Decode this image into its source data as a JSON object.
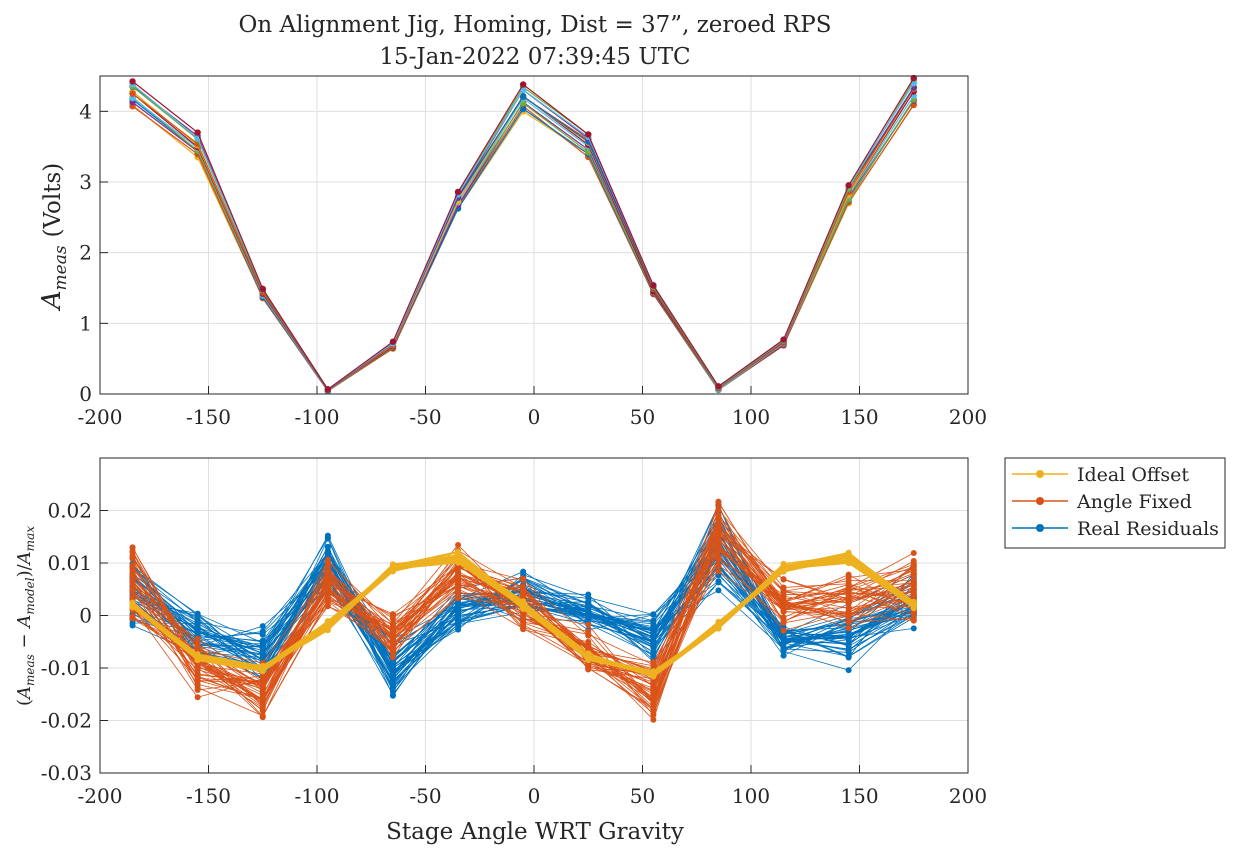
{
  "title_line1": "On Alignment Jig, Homing, Dist = 37”, zeroed RPS",
  "title_line2": "15-Jan-2022 07:39:45 UTC",
  "chart_data": [
    {
      "type": "line",
      "panel": "top",
      "ylabel_main": "A",
      "ylabel_sub": "meas",
      "ylabel_unit": "(Volts)",
      "xlim": [
        -200,
        200
      ],
      "ylim": [
        0,
        4.5
      ],
      "xticks": [
        -200,
        -150,
        -100,
        -50,
        0,
        50,
        100,
        150,
        200
      ],
      "yticks": [
        0,
        1,
        2,
        3,
        4
      ],
      "grid": true,
      "x": [
        -185,
        -155,
        -125,
        -95,
        -65,
        -35,
        -5,
        25,
        55,
        85,
        115,
        145,
        175
      ],
      "y_high": [
        4.44,
        3.7,
        1.5,
        0.07,
        0.74,
        2.88,
        4.38,
        3.71,
        1.55,
        0.11,
        0.77,
        2.98,
        4.47
      ],
      "y_low": [
        4.06,
        3.35,
        1.35,
        0.04,
        0.63,
        2.6,
        4.0,
        3.35,
        1.4,
        0.05,
        0.68,
        2.7,
        4.06
      ],
      "series_count": 14,
      "series_colors": [
        "#EDB120",
        "#D95319",
        "#0072BD",
        "#7E2F8E",
        "#77AC30",
        "#4DBEEE",
        "#A2142F"
      ]
    },
    {
      "type": "line",
      "panel": "bottom",
      "xlabel": "Stage Angle WRT Gravity",
      "ylabel_text": "(A_meas − A_model)/A_max",
      "xlim": [
        -200,
        200
      ],
      "ylim": [
        -0.03,
        0.03
      ],
      "xticks": [
        -200,
        -150,
        -100,
        -50,
        0,
        50,
        100,
        150,
        200
      ],
      "yticks": [
        -0.03,
        -0.02,
        -0.01,
        0,
        0.01,
        0.02
      ],
      "ytick_labels": [
        "-0.03",
        "-0.02",
        "-0.01",
        "0",
        "0.01",
        "0.02"
      ],
      "grid": true,
      "x": [
        -185,
        -155,
        -125,
        -95,
        -65,
        -35,
        -5,
        25,
        55,
        85,
        115,
        145,
        175
      ],
      "legend_position": "outside-right",
      "series": [
        {
          "name": "Real Residuals",
          "color": "#0072BD",
          "count": 45,
          "center": [
            0.005,
            -0.004,
            -0.008,
            0.01,
            -0.01,
            0.001,
            0.004,
            0.0,
            -0.004,
            0.013,
            -0.004,
            -0.004,
            0.003
          ],
          "spread": [
            0.007,
            0.005,
            0.006,
            0.006,
            0.006,
            0.004,
            0.005,
            0.004,
            0.005,
            0.008,
            0.004,
            0.006,
            0.006
          ]
        },
        {
          "name": "Angle Fixed",
          "color": "#D95319",
          "count": 40,
          "center": [
            0.006,
            -0.01,
            -0.015,
            0.006,
            -0.004,
            0.008,
            0.002,
            -0.007,
            -0.015,
            0.015,
            0.002,
            0.002,
            0.005
          ],
          "spread": [
            0.008,
            0.006,
            0.006,
            0.006,
            0.005,
            0.006,
            0.006,
            0.005,
            0.007,
            0.007,
            0.006,
            0.006,
            0.007
          ]
        },
        {
          "name": "Ideal Offset",
          "color": "#EDB120",
          "count": 20,
          "center": [
            0.002,
            -0.008,
            -0.01,
            -0.002,
            0.009,
            0.011,
            0.002,
            -0.008,
            -0.011,
            -0.002,
            0.009,
            0.011,
            0.002
          ],
          "spread": [
            0.0008,
            0.0008,
            0.0008,
            0.0008,
            0.0008,
            0.001,
            0.0008,
            0.0008,
            0.0008,
            0.0008,
            0.0008,
            0.0012,
            0.0008
          ]
        }
      ]
    }
  ],
  "legend_order": [
    "Ideal Offset",
    "Angle Fixed",
    "Real Residuals"
  ],
  "ylabel_bottom_parts": {
    "open": "(",
    "a1": "A",
    "s1": "meas",
    "minus": " − ",
    "a2": "A",
    "s2": "model",
    "close": ")/",
    "a3": "A",
    "s3": "max"
  }
}
